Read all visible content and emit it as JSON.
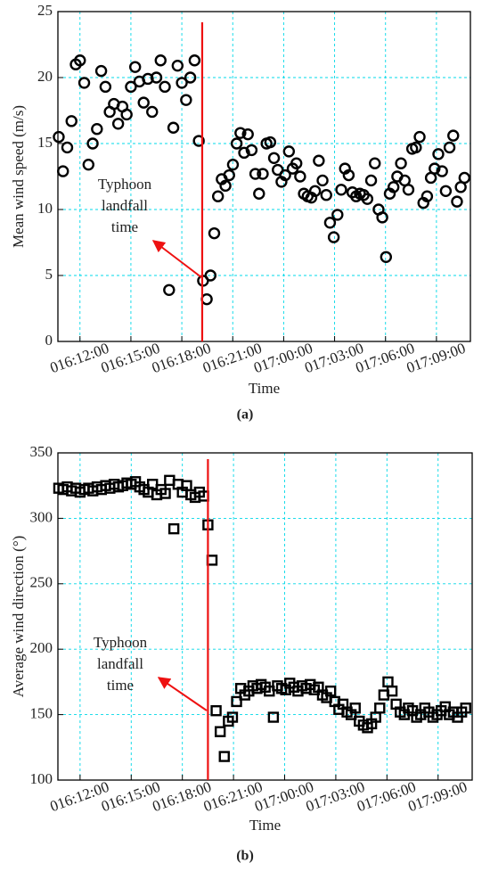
{
  "chart_data": [
    {
      "type": "scatter",
      "marker": "circle",
      "color": "#000000",
      "xlabel": "Time",
      "ylabel": "Mean wind speed (m/s)",
      "caption": "(a)",
      "annotation": [
        "Typhoon",
        "landfall",
        "time"
      ],
      "landfall_x": 19.2,
      "landfall_color": "#ee1111",
      "grid": true,
      "xlim": [
        10.7,
        35
      ],
      "xticks": [
        {
          "value": 12,
          "label": "016:12:00"
        },
        {
          "value": 15,
          "label": "016:15:00"
        },
        {
          "value": 18,
          "label": "016:18:00"
        },
        {
          "value": 21,
          "label": "016:21:00"
        },
        {
          "value": 24,
          "label": "017:00:00"
        },
        {
          "value": 27,
          "label": "017:03:00"
        },
        {
          "value": 30,
          "label": "017:06:00"
        },
        {
          "value": 33,
          "label": "017:09:00"
        }
      ],
      "ylim": [
        0,
        25
      ],
      "yticks": [
        0,
        5,
        10,
        15,
        20,
        25
      ],
      "x": [
        10.75,
        11,
        11.25,
        11.5,
        11.75,
        12,
        12.25,
        12.5,
        12.75,
        13,
        13.25,
        13.5,
        13.75,
        14,
        14.25,
        14.5,
        14.75,
        15,
        15.25,
        15.5,
        15.75,
        16,
        16.25,
        16.5,
        16.75,
        17,
        17.25,
        17.5,
        17.75,
        18,
        18.25,
        18.5,
        18.75,
        19,
        19.25,
        19.47,
        19.69,
        19.91,
        20.13,
        20.35,
        20.57,
        20.79,
        21.01,
        21.23,
        21.45,
        21.67,
        21.89,
        22.11,
        22.33,
        22.55,
        22.77,
        22.99,
        23.21,
        23.43,
        23.65,
        23.87,
        24.09,
        24.31,
        24.53,
        24.75,
        24.97,
        25.19,
        25.41,
        25.63,
        25.85,
        26.07,
        26.29,
        26.51,
        26.73,
        26.95,
        27.17,
        27.39,
        27.61,
        27.83,
        28.05,
        28.27,
        28.49,
        28.71,
        28.93,
        29.15,
        29.37,
        29.59,
        29.81,
        30.03,
        30.25,
        30.47,
        30.69,
        30.91,
        31.13,
        31.35,
        31.57,
        31.79,
        32.01,
        32.23,
        32.45,
        32.67,
        32.89,
        33.11,
        33.33,
        33.55,
        33.77,
        33.99,
        34.21,
        34.43,
        34.65
      ],
      "values": [
        15.5,
        12.9,
        14.7,
        16.7,
        21.0,
        21.3,
        19.6,
        13.4,
        15.0,
        16.1,
        20.5,
        19.3,
        17.4,
        18.0,
        16.5,
        17.8,
        17.2,
        19.3,
        20.8,
        19.7,
        18.1,
        19.9,
        17.4,
        20.0,
        21.3,
        19.3,
        3.9,
        16.2,
        20.9,
        19.6,
        18.3,
        20.0,
        21.3,
        15.2,
        4.6,
        3.2,
        5.0,
        8.2,
        11.0,
        12.3,
        11.8,
        12.6,
        13.4,
        15.0,
        15.8,
        14.3,
        15.7,
        14.5,
        12.7,
        11.2,
        12.7,
        15.0,
        15.1,
        13.9,
        13.0,
        12.1,
        12.6,
        14.4,
        13.1,
        13.5,
        12.5,
        11.2,
        11.0,
        10.9,
        11.4,
        13.7,
        12.2,
        11.1,
        9.0,
        7.9,
        9.6,
        11.5,
        13.1,
        12.6,
        11.3,
        11.0,
        11.2,
        11.1,
        10.8,
        12.2,
        13.5,
        10.0,
        9.4,
        6.4,
        11.2,
        11.7,
        12.5,
        13.5,
        12.2,
        11.5,
        14.6,
        14.7,
        15.5,
        10.5,
        11.0,
        12.4,
        13.1,
        14.2,
        12.9,
        11.4,
        14.7,
        15.6,
        10.6,
        11.7,
        12.4
      ]
    },
    {
      "type": "scatter",
      "marker": "square",
      "color": "#000000",
      "xlabel": "Time",
      "ylabel": "Average wind direction (°)",
      "caption": "(b)",
      "annotation": [
        "Typhoon",
        "landfall",
        "time"
      ],
      "landfall_x": 19.5,
      "landfall_color": "#ee1111",
      "grid": true,
      "xlim": [
        10.7,
        35
      ],
      "xticks": [
        {
          "value": 12,
          "label": "016:12:00"
        },
        {
          "value": 15,
          "label": "016:15:00"
        },
        {
          "value": 18,
          "label": "016:18:00"
        },
        {
          "value": 21,
          "label": "016:21:00"
        },
        {
          "value": 24,
          "label": "017:00:00"
        },
        {
          "value": 27,
          "label": "017:03:00"
        },
        {
          "value": 30,
          "label": "017:06:00"
        },
        {
          "value": 33,
          "label": "017:09:00"
        }
      ],
      "ylim": [
        100,
        350
      ],
      "yticks": [
        100,
        150,
        200,
        250,
        300,
        350
      ],
      "x": [
        10.75,
        11,
        11.25,
        11.5,
        11.75,
        12,
        12.25,
        12.5,
        12.75,
        13,
        13.25,
        13.5,
        13.75,
        14,
        14.25,
        14.5,
        14.75,
        15,
        15.25,
        15.5,
        15.75,
        16,
        16.25,
        16.5,
        16.75,
        17,
        17.25,
        17.5,
        17.75,
        18,
        18.25,
        18.5,
        18.75,
        19,
        19.25,
        19.5,
        19.74,
        19.98,
        20.22,
        20.46,
        20.7,
        20.94,
        21.18,
        21.42,
        21.66,
        21.9,
        22.14,
        22.38,
        22.62,
        22.86,
        23.1,
        23.34,
        23.58,
        23.82,
        24.06,
        24.3,
        24.54,
        24.78,
        25.02,
        25.26,
        25.5,
        25.74,
        25.98,
        26.22,
        26.46,
        26.7,
        26.94,
        27.18,
        27.42,
        27.66,
        27.9,
        28.14,
        28.38,
        28.62,
        28.86,
        29.1,
        29.34,
        29.58,
        29.82,
        30.06,
        30.3,
        30.54,
        30.78,
        31.02,
        31.26,
        31.5,
        31.74,
        31.98,
        32.22,
        32.46,
        32.7,
        32.94,
        33.18,
        33.42,
        33.66,
        33.9,
        34.14,
        34.38,
        34.62
      ],
      "values": [
        323,
        322,
        324,
        321,
        323,
        320,
        322,
        323,
        321,
        324,
        322,
        325,
        323,
        326,
        324,
        325,
        327,
        326,
        328,
        324,
        322,
        320,
        326,
        318,
        322,
        319,
        329,
        292,
        326,
        320,
        325,
        318,
        316,
        320,
        317,
        295,
        268,
        153,
        137,
        118,
        145,
        148,
        160,
        170,
        165,
        168,
        172,
        170,
        173,
        171,
        168,
        148,
        172,
        170,
        169,
        174,
        171,
        168,
        172,
        170,
        173,
        169,
        171,
        165,
        163,
        168,
        160,
        154,
        158,
        152,
        150,
        155,
        145,
        142,
        140,
        143,
        148,
        155,
        165,
        175,
        168,
        158,
        152,
        150,
        155,
        153,
        148,
        150,
        155,
        152,
        148,
        150,
        153,
        156,
        150,
        152,
        148,
        152,
        155
      ]
    }
  ]
}
